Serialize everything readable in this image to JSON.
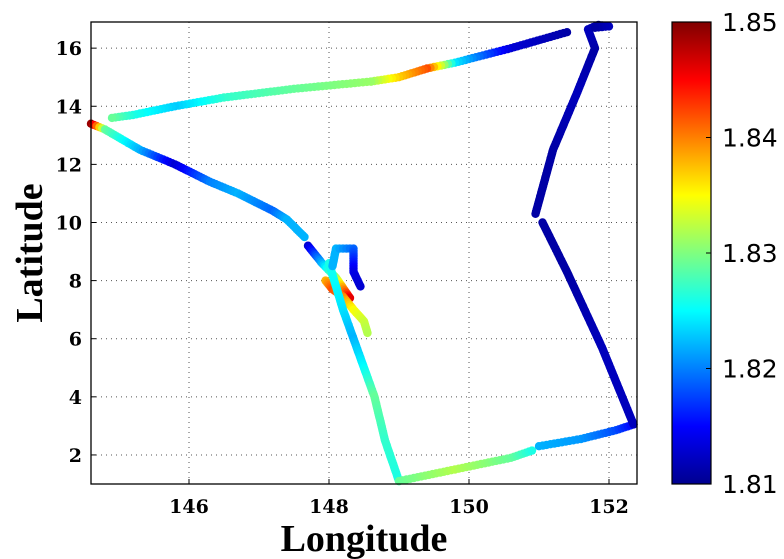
{
  "chart_data": {
    "type": "scatter",
    "title": "",
    "xlabel": "Longitude",
    "ylabel": "Latitude",
    "xlim": [
      144.6,
      152.4
    ],
    "ylim": [
      1.0,
      16.9
    ],
    "xticks": [
      146,
      148,
      150,
      152
    ],
    "yticks": [
      2,
      4,
      6,
      8,
      10,
      12,
      14,
      16
    ],
    "x_tick_labels": [
      "146",
      "148",
      "150",
      "152"
    ],
    "y_tick_labels": [
      "2",
      "4",
      "6",
      "8",
      "10",
      "12",
      "14",
      "16"
    ],
    "grid": true,
    "colormap": "jet",
    "colorbar": {
      "clim": [
        1.81,
        1.85
      ],
      "ticks": [
        1.81,
        1.82,
        1.83,
        1.84,
        1.85
      ],
      "tick_labels": [
        "1.81",
        "1.82",
        "1.83",
        "1.84",
        "1.85"
      ],
      "location": "right"
    },
    "track_segments": [
      {
        "x": [
          144.6,
          144.8,
          145.3,
          145.8,
          146.3,
          146.7,
          147.2,
          147.4,
          147.65
        ],
        "y": [
          13.4,
          13.2,
          12.5,
          12.0,
          11.4,
          11.0,
          10.4,
          10.1,
          9.5
        ],
        "c": [
          1.849,
          1.829,
          1.822,
          1.813,
          1.82,
          1.822,
          1.819,
          1.822,
          1.822
        ]
      },
      {
        "x": [
          147.7,
          147.9,
          148.1,
          148.3
        ],
        "y": [
          9.2,
          8.6,
          8.1,
          7.4
        ],
        "c": [
          1.813,
          1.822,
          1.831,
          1.846
        ]
      },
      {
        "x": [
          147.95,
          148.05,
          148.2,
          148.35,
          148.5,
          148.55
        ],
        "y": [
          8.0,
          7.7,
          7.45,
          7.0,
          6.6,
          6.2
        ],
        "c": [
          1.838,
          1.842,
          1.84,
          1.835,
          1.833,
          1.832
        ]
      },
      {
        "x": [
          148.0,
          148.2,
          148.35,
          148.5,
          148.65,
          148.8,
          149.0
        ],
        "y": [
          8.6,
          7.0,
          6.0,
          5.0,
          4.0,
          2.5,
          1.1
        ],
        "c": [
          1.826,
          1.824,
          1.822,
          1.825,
          1.829,
          1.827,
          1.826
        ]
      },
      {
        "x": [
          148.05,
          148.1,
          148.35,
          148.35,
          148.45
        ],
        "y": [
          8.5,
          9.1,
          9.1,
          8.3,
          7.8
        ],
        "c": [
          1.822,
          1.822,
          1.819,
          1.814,
          1.813
        ]
      },
      {
        "x": [
          149.0,
          149.8,
          150.6,
          150.9
        ],
        "y": [
          1.1,
          1.5,
          1.9,
          2.15
        ],
        "c": [
          1.829,
          1.832,
          1.829,
          1.826
        ]
      },
      {
        "x": [
          151.0,
          151.6,
          152.1,
          152.35
        ],
        "y": [
          2.3,
          2.55,
          2.85,
          3.05
        ],
        "c": [
          1.822,
          1.821,
          1.818,
          1.815
        ]
      },
      {
        "x": [
          152.35,
          151.9,
          151.4,
          151.05
        ],
        "y": [
          3.05,
          5.7,
          8.3,
          10.0
        ],
        "c": [
          1.812,
          1.812,
          1.811,
          1.811
        ]
      },
      {
        "x": [
          150.95,
          151.2,
          151.55,
          151.8,
          151.7,
          151.85,
          152.0,
          151.8
        ],
        "y": [
          10.3,
          12.5,
          14.5,
          16.0,
          16.65,
          16.8,
          16.75,
          16.7
        ],
        "c": [
          1.811,
          1.811,
          1.812,
          1.811,
          1.812,
          1.811,
          1.812,
          1.811
        ]
      },
      {
        "x": [
          151.4,
          150.6,
          149.8,
          149.4,
          149.0,
          148.6
        ],
        "y": [
          16.55,
          16.0,
          15.5,
          15.3,
          15.0,
          14.85
        ],
        "c": [
          1.811,
          1.813,
          1.824,
          1.842,
          1.837,
          1.831
        ]
      },
      {
        "x": [
          148.6,
          147.5,
          146.5,
          145.8,
          145.2,
          144.9
        ],
        "y": [
          14.85,
          14.6,
          14.3,
          14.0,
          13.7,
          13.6
        ],
        "c": [
          1.831,
          1.829,
          1.827,
          1.823,
          1.826,
          1.829
        ]
      }
    ]
  }
}
